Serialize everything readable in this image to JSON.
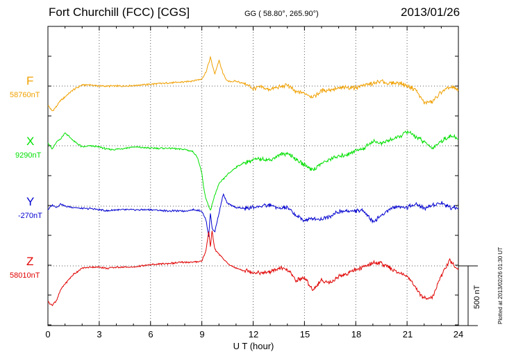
{
  "header": {
    "station": "Fort Churchill (FCC)  [CGS]",
    "coords": "GG ( 58.80°, 265.90°)",
    "date": "2013/01/26"
  },
  "scale_label": "500 nT",
  "plotted_note": "Plotted at 2013/02/26 01:30 UT",
  "colors": {
    "F": "#f0a000",
    "X": "#00e000",
    "Y": "#0000d0",
    "Z": "#e00000"
  },
  "chart_data": {
    "type": "line",
    "xlabel": "U T (hour)",
    "xlim": [
      0,
      24
    ],
    "xticks": [
      0,
      3,
      6,
      9,
      12,
      15,
      18,
      21,
      24
    ],
    "series_labels": [
      {
        "name": "F",
        "baseline": "58760nT"
      },
      {
        "name": "X",
        "baseline": "9290nT"
      },
      {
        "name": "Y",
        "baseline": "-270nT"
      },
      {
        "name": "Z",
        "baseline": "58010nT"
      }
    ],
    "series": [
      {
        "name": "F",
        "x": [
          0,
          0.25,
          0.5,
          0.75,
          1,
          1.5,
          2,
          2.5,
          3,
          3.5,
          4,
          5,
          6,
          7,
          8,
          8.5,
          9,
          9.25,
          9.5,
          9.75,
          10,
          10.25,
          10.5,
          11,
          11.5,
          12,
          12.5,
          13,
          13.5,
          14,
          14.5,
          15,
          15.5,
          16,
          16.5,
          17,
          17.5,
          18,
          18.5,
          19,
          19.5,
          20,
          20.5,
          21,
          21.5,
          22,
          22.5,
          23,
          23.5,
          24
        ],
        "y": [
          -160,
          -210,
          -170,
          -120,
          -90,
          -30,
          10,
          10,
          0,
          0,
          0,
          5,
          15,
          25,
          35,
          45,
          60,
          120,
          240,
          100,
          215,
          100,
          40,
          40,
          20,
          -20,
          -10,
          -30,
          -10,
          10,
          -50,
          -60,
          -90,
          -40,
          -30,
          -20,
          -10,
          -10,
          10,
          20,
          40,
          20,
          30,
          0,
          -30,
          -140,
          -130,
          -50,
          -10,
          -30
        ]
      },
      {
        "name": "X",
        "x": [
          0,
          0.25,
          0.5,
          0.75,
          1,
          1.5,
          2,
          2.5,
          3,
          3.5,
          4,
          5,
          6,
          7,
          8,
          8.5,
          8.75,
          9,
          9.1,
          9.25,
          9.5,
          9.75,
          10,
          10.5,
          11,
          11.5,
          12,
          12.5,
          13,
          13.5,
          14,
          14.5,
          15,
          15.5,
          16,
          16.5,
          17,
          17.5,
          18,
          18.5,
          19,
          19.5,
          20,
          20.5,
          21,
          21.5,
          22,
          22.5,
          23,
          23.5,
          24
        ],
        "y": [
          30,
          -30,
          30,
          60,
          110,
          40,
          -10,
          0,
          -10,
          -30,
          -30,
          -10,
          -20,
          -20,
          -30,
          -50,
          -100,
          -230,
          -350,
          -450,
          -540,
          -420,
          -320,
          -240,
          -180,
          -140,
          -120,
          -110,
          -120,
          -80,
          -60,
          -110,
          -160,
          -200,
          -150,
          -110,
          -90,
          -70,
          -40,
          -20,
          40,
          20,
          50,
          70,
          120,
          80,
          30,
          -20,
          40,
          80,
          60
        ]
      },
      {
        "name": "Y",
        "x": [
          0,
          0.25,
          0.5,
          0.75,
          1,
          1.5,
          2,
          2.5,
          3,
          3.5,
          4,
          5,
          6,
          7,
          8,
          8.5,
          9,
          9.25,
          9.4,
          9.5,
          9.6,
          9.75,
          10,
          10.25,
          10.5,
          11,
          11.5,
          12,
          12.5,
          13,
          13.5,
          14,
          14.5,
          15,
          15.5,
          16,
          16.5,
          17,
          17.5,
          18,
          18.5,
          19,
          19.5,
          20,
          20.5,
          21,
          21.5,
          22,
          22.5,
          23,
          23.5,
          24
        ],
        "y": [
          -30,
          10,
          -10,
          20,
          0,
          -10,
          -20,
          -20,
          -30,
          -40,
          -30,
          -30,
          -30,
          -40,
          -40,
          -30,
          -40,
          -120,
          -250,
          -60,
          -180,
          -220,
          -60,
          100,
          20,
          -10,
          -20,
          -10,
          0,
          10,
          -20,
          -10,
          -80,
          -120,
          -100,
          -110,
          -80,
          -50,
          -40,
          -40,
          -40,
          -130,
          -80,
          -20,
          0,
          -10,
          20,
          -20,
          10,
          30,
          -10,
          -10
        ]
      },
      {
        "name": "Z",
        "x": [
          0,
          0.25,
          0.5,
          0.75,
          1,
          1.5,
          2,
          2.5,
          3,
          3.5,
          4,
          5,
          6,
          7,
          8,
          8.5,
          9,
          9.25,
          9.4,
          9.5,
          9.6,
          9.75,
          10,
          10.5,
          11,
          11.5,
          12,
          12.5,
          13,
          13.5,
          14,
          14.5,
          15,
          15.5,
          16,
          16.5,
          17,
          17.5,
          18,
          18.5,
          19,
          19.5,
          20,
          20.5,
          21,
          21.5,
          22,
          22.5,
          23,
          23.5,
          24
        ],
        "y": [
          -300,
          -330,
          -290,
          -200,
          -150,
          -70,
          -20,
          -10,
          -10,
          -20,
          -10,
          -10,
          10,
          20,
          30,
          30,
          40,
          130,
          290,
          160,
          300,
          140,
          100,
          20,
          -20,
          -40,
          -50,
          -60,
          -50,
          -20,
          -30,
          -120,
          -100,
          -200,
          -120,
          -140,
          -90,
          -60,
          -30,
          -10,
          30,
          20,
          -20,
          -60,
          -80,
          -190,
          -270,
          -260,
          -80,
          50,
          -40
        ]
      }
    ]
  }
}
